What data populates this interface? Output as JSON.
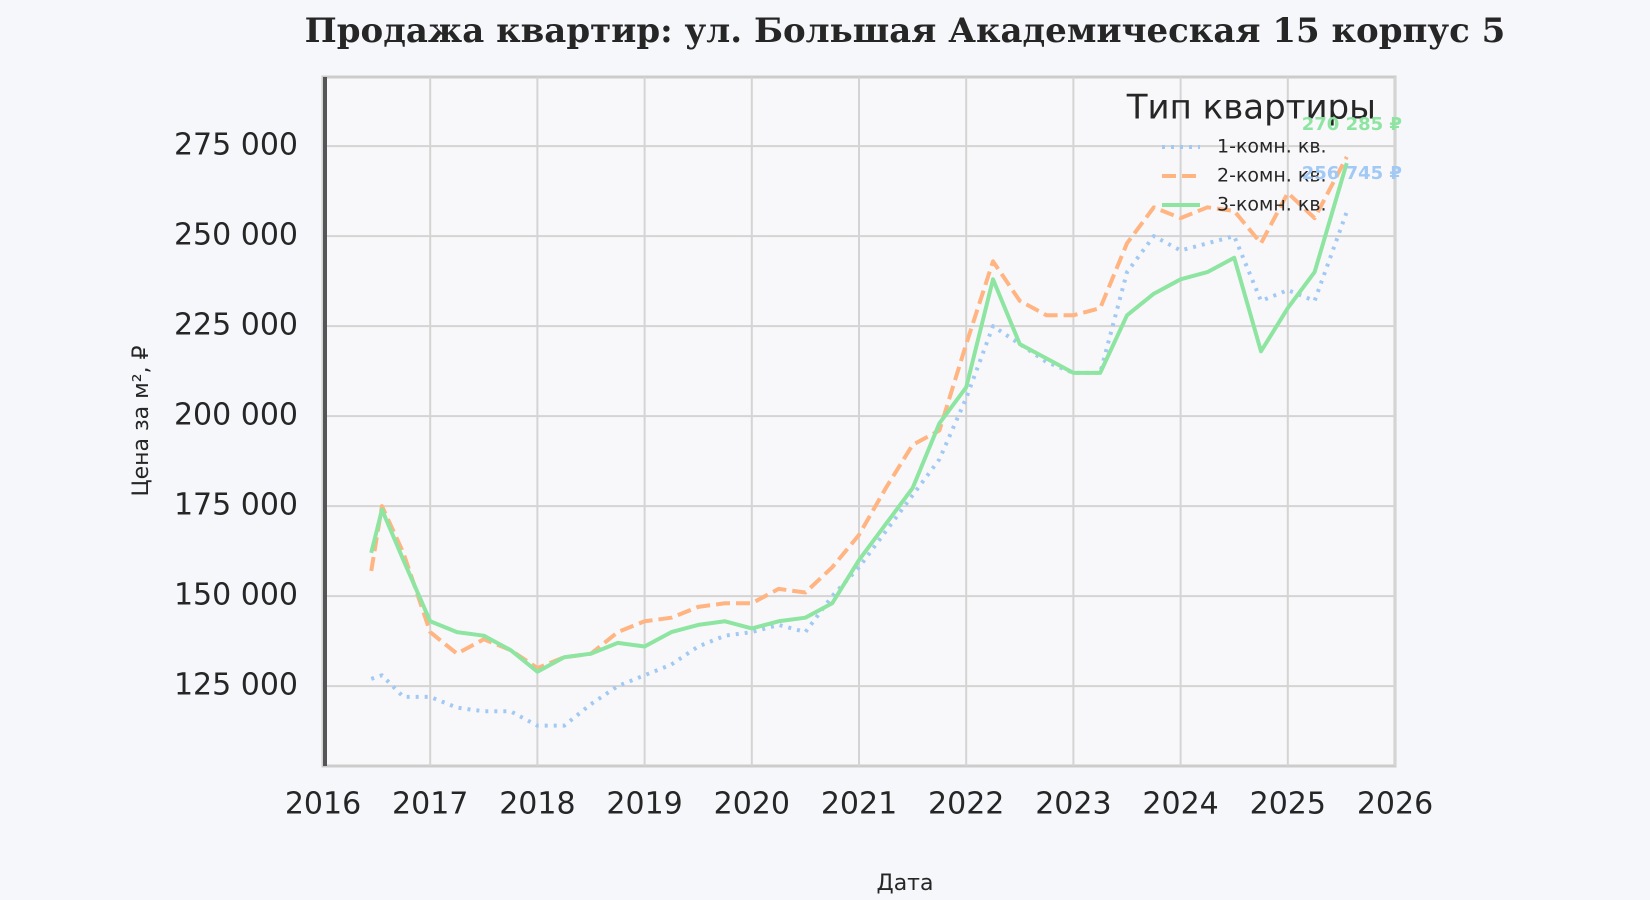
{
  "chart_data": {
    "type": "line",
    "title": "Продажа квартир: ул. Большая Академическая 15 корпус 5",
    "x_label": "Дата",
    "y_label": "Цена за м², ₽",
    "legend_title": "Тип квартиры",
    "legend_position": "upper right",
    "grid": true,
    "x": [
      2016.45,
      2016.55,
      2016.75,
      2017.0,
      2017.25,
      2017.5,
      2017.75,
      2018.0,
      2018.25,
      2018.5,
      2018.75,
      2019.0,
      2019.25,
      2019.5,
      2019.75,
      2020.0,
      2020.25,
      2020.5,
      2020.75,
      2021.0,
      2021.25,
      2021.5,
      2021.75,
      2022.0,
      2022.25,
      2022.5,
      2022.75,
      2023.0,
      2023.25,
      2023.5,
      2023.75,
      2024.0,
      2024.25,
      2024.5,
      2024.75,
      2025.0,
      2025.25,
      2025.55
    ],
    "series": [
      {
        "name": "1-комн. кв.",
        "color": "#a1c9f4",
        "dash": "dotted",
        "end_label": "256 745 ₽",
        "values": [
          127000,
          128000,
          122000,
          122000,
          119000,
          118000,
          118000,
          114000,
          114000,
          120000,
          125000,
          128000,
          131000,
          136000,
          139000,
          140000,
          142000,
          140000,
          150000,
          158000,
          168000,
          178000,
          188000,
          205000,
          225000,
          220000,
          215000,
          212000,
          212000,
          240000,
          250000,
          246000,
          248000,
          250000,
          232000,
          235000,
          232000,
          256745
        ]
      },
      {
        "name": "2-комн. кв.",
        "color": "#ffb482",
        "dash": "dashed",
        "values": [
          157000,
          175000,
          162000,
          140000,
          134000,
          138000,
          135000,
          130000,
          133000,
          134000,
          140000,
          143000,
          144000,
          147000,
          148000,
          148000,
          152000,
          151000,
          158000,
          167000,
          180000,
          192000,
          196000,
          220000,
          243000,
          232000,
          228000,
          228000,
          230000,
          248000,
          258000,
          255000,
          258000,
          257000,
          248000,
          262000,
          255000,
          272000
        ]
      },
      {
        "name": "3-комн. кв.",
        "color": "#8de5a1",
        "dash": "solid",
        "end_label": "270 285 ₽",
        "values": [
          162000,
          174000,
          160000,
          143000,
          140000,
          139000,
          135000,
          129000,
          133000,
          134000,
          137000,
          136000,
          140000,
          142000,
          143000,
          141000,
          143000,
          144000,
          148000,
          160000,
          170000,
          180000,
          198000,
          208000,
          238000,
          220000,
          216000,
          212000,
          212000,
          228000,
          234000,
          238000,
          240000,
          244000,
          218000,
          230000,
          240000,
          270285
        ]
      }
    ],
    "xlim": [
      2016,
      2026
    ],
    "xticks": [
      2016,
      2017,
      2018,
      2019,
      2020,
      2021,
      2022,
      2023,
      2024,
      2025,
      2026
    ],
    "ylim": [
      102800,
      294200
    ],
    "yticks": [
      {
        "value": 125000,
        "label": "125 000"
      },
      {
        "value": 150000,
        "label": "150 000"
      },
      {
        "value": 175000,
        "label": "175 000"
      },
      {
        "value": 200000,
        "label": "200 000"
      },
      {
        "value": 225000,
        "label": "225 000"
      },
      {
        "value": 250000,
        "label": "250 000"
      },
      {
        "value": 275000,
        "label": "275 000"
      }
    ]
  }
}
